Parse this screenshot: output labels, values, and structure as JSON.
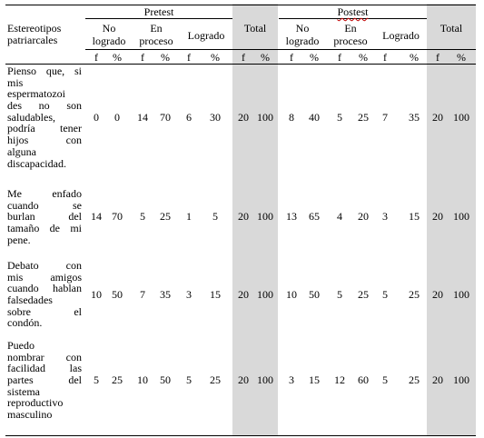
{
  "table": {
    "stub_header": [
      "Estereotipos",
      "patriarcales"
    ],
    "groups": [
      {
        "label": "Pretest",
        "subs": [
          {
            "label_lines": [
              "No",
              "logrado"
            ]
          },
          {
            "label_lines": [
              "En",
              "proceso"
            ]
          },
          {
            "label_lines": [
              "Logrado"
            ]
          }
        ],
        "total": "Total"
      },
      {
        "label": "Postest",
        "subs": [
          {
            "label_lines": [
              "No",
              "logrado"
            ]
          },
          {
            "label_lines": [
              "En",
              "proceso"
            ]
          },
          {
            "label_lines": [
              "Logrado"
            ]
          }
        ],
        "total": "Total"
      }
    ],
    "measure_labels": [
      "f",
      "%"
    ],
    "rows": [
      {
        "stub_lines": [
          "Pienso que, si",
          "mis",
          "espermatozoi",
          "des no son",
          "saludables,",
          "podría tener",
          "hijos con",
          "alguna",
          "discapacidad."
        ],
        "values": [
          "0",
          "0",
          "14",
          "70",
          "6",
          "30",
          "20",
          "100",
          "8",
          "40",
          "5",
          "25",
          "7",
          "35",
          "20",
          "100"
        ]
      },
      {
        "stub_lines": [
          "Me enfado",
          "cuando se",
          "burlan del",
          "tamaño de mi",
          "pene."
        ],
        "values": [
          "14",
          "70",
          "5",
          "25",
          "1",
          "5",
          "20",
          "100",
          "13",
          "65",
          "4",
          "20",
          "3",
          "15",
          "20",
          "100"
        ]
      },
      {
        "stub_lines": [
          "Debato con",
          "mis amigos",
          "cuando hablan",
          "falsedades",
          "sobre el",
          "condón."
        ],
        "values": [
          "10",
          "50",
          "7",
          "35",
          "3",
          "15",
          "20",
          "100",
          "10",
          "50",
          "5",
          "25",
          "5",
          "25",
          "20",
          "100"
        ]
      },
      {
        "stub_lines": [
          "Puedo",
          "nombrar con",
          "facilidad las",
          "partes del",
          "sistema",
          "reproductivo",
          "masculino"
        ],
        "values": [
          "5",
          "25",
          "10",
          "50",
          "5",
          "25",
          "20",
          "100",
          "3",
          "15",
          "12",
          "60",
          "5",
          "25",
          "20",
          "100"
        ]
      }
    ]
  },
  "colors": {
    "total_shade": "#d9d9d9",
    "rule": "#000000",
    "spell_underline": "#c00000"
  }
}
